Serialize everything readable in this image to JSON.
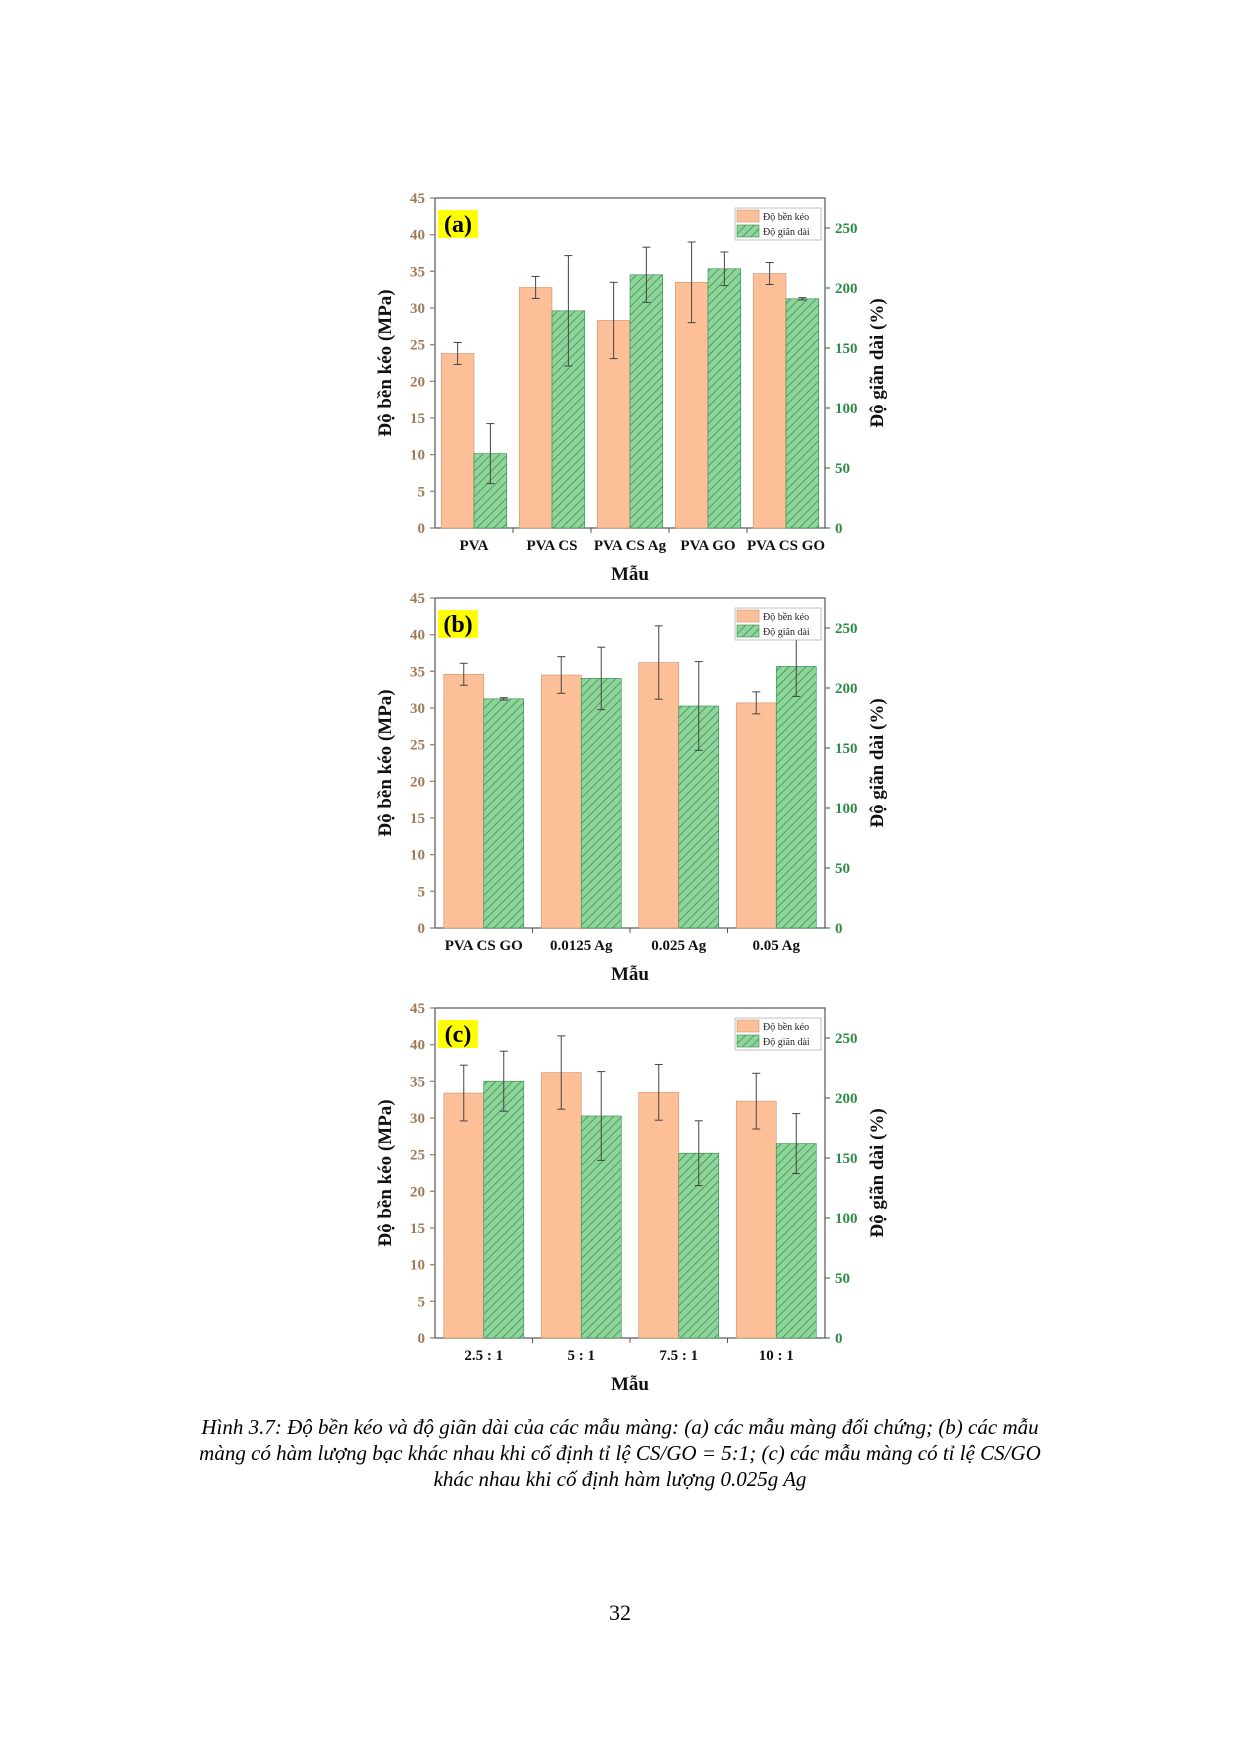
{
  "colors": {
    "tensile": "#fcbf97",
    "tensile_stroke": "#c8936e",
    "elong": "#8fd49b",
    "elong_hatch": "#2e8b47",
    "left_axis": "#a07a57",
    "right_axis": "#2e8b47",
    "frame": "#555555",
    "label_bg": "#ffff00"
  },
  "chart_data": [
    {
      "type": "bar",
      "panel_label": "(a)",
      "categories": [
        "PVA",
        "PVA CS",
        "PVA CS Ag",
        "PVA GO",
        "PVA CS GO"
      ],
      "xlabel": "Mẫu",
      "ylabel": "Độ bền kéo (MPa)",
      "y2label": "Độ giãn dài (%)",
      "ylim": [
        0,
        45
      ],
      "y2lim": [
        0,
        275
      ],
      "yticks": [
        "0",
        "5",
        "10",
        "15",
        "20",
        "25",
        "30",
        "35",
        "40",
        "45"
      ],
      "y2ticks": [
        "0",
        "50",
        "100",
        "150",
        "200",
        "250"
      ],
      "legend": [
        "Độ bền kéo",
        "Độ giãn dài"
      ],
      "legend_position": "top-right",
      "series": [
        {
          "name": "Độ bền kéo",
          "axis": "left",
          "values": [
            23.8,
            32.8,
            28.3,
            33.5,
            34.7
          ],
          "errors": [
            1.5,
            1.5,
            5.2,
            5.5,
            1.5
          ]
        },
        {
          "name": "Độ giãn dài",
          "axis": "right",
          "values": [
            62,
            181,
            211,
            216,
            191
          ],
          "errors": [
            25,
            46,
            23,
            14,
            1
          ]
        }
      ]
    },
    {
      "type": "bar",
      "panel_label": "(b)",
      "categories": [
        "PVA CS GO",
        "0.0125 Ag",
        "0.025 Ag",
        "0.05 Ag"
      ],
      "xlabel": "Mẫu",
      "ylabel": "Độ bền kéo (MPa)",
      "y2label": "Độ giãn dài (%)",
      "ylim": [
        0,
        45
      ],
      "y2lim": [
        0,
        275
      ],
      "yticks": [
        "0",
        "5",
        "10",
        "15",
        "20",
        "25",
        "30",
        "35",
        "40",
        "45"
      ],
      "y2ticks": [
        "0",
        "50",
        "100",
        "150",
        "200",
        "250"
      ],
      "legend": [
        "Độ bền kéo",
        "Độ giãn dài"
      ],
      "legend_position": "top-right",
      "series": [
        {
          "name": "Độ bền kéo",
          "axis": "left",
          "values": [
            34.6,
            34.5,
            36.2,
            30.7
          ],
          "errors": [
            1.5,
            2.5,
            5.0,
            1.5
          ]
        },
        {
          "name": "Độ giãn dài",
          "axis": "right",
          "values": [
            191,
            208,
            185,
            218
          ],
          "errors": [
            1,
            26,
            37,
            25
          ]
        }
      ]
    },
    {
      "type": "bar",
      "panel_label": "(c)",
      "categories": [
        "2.5 : 1",
        "5 : 1",
        "7.5 : 1",
        "10 : 1"
      ],
      "xlabel": "Mẫu",
      "ylabel": "Độ bền kéo (MPa)",
      "y2label": "Độ giãn dài (%)",
      "ylim": [
        0,
        45
      ],
      "y2lim": [
        0,
        275
      ],
      "yticks": [
        "0",
        "5",
        "10",
        "15",
        "20",
        "25",
        "30",
        "35",
        "40",
        "45"
      ],
      "y2ticks": [
        "0",
        "50",
        "100",
        "150",
        "200",
        "250"
      ],
      "legend": [
        "Độ bền kéo",
        "Độ giãn dài"
      ],
      "legend_position": "top-right",
      "series": [
        {
          "name": "Độ bền kéo",
          "axis": "left",
          "values": [
            33.4,
            36.2,
            33.5,
            32.3
          ],
          "errors": [
            3.8,
            5.0,
            3.8,
            3.8
          ]
        },
        {
          "name": "Độ giãn dài",
          "axis": "right",
          "values": [
            214,
            185,
            154,
            162
          ],
          "errors": [
            25,
            37,
            27,
            25
          ]
        }
      ]
    }
  ],
  "caption": "Hình 3.7: Độ bền kéo và độ giãn dài của các mẫu màng: (a) các mẫu màng đối chứng; (b) các mẫu màng có hàm lượng bạc khác nhau khi cố định tỉ lệ CS/GO = 5:1; (c) các mẫu màng có tỉ lệ CS/GO khác nhau khi cố định hàm lượng 0.025g Ag",
  "page_number": "32"
}
